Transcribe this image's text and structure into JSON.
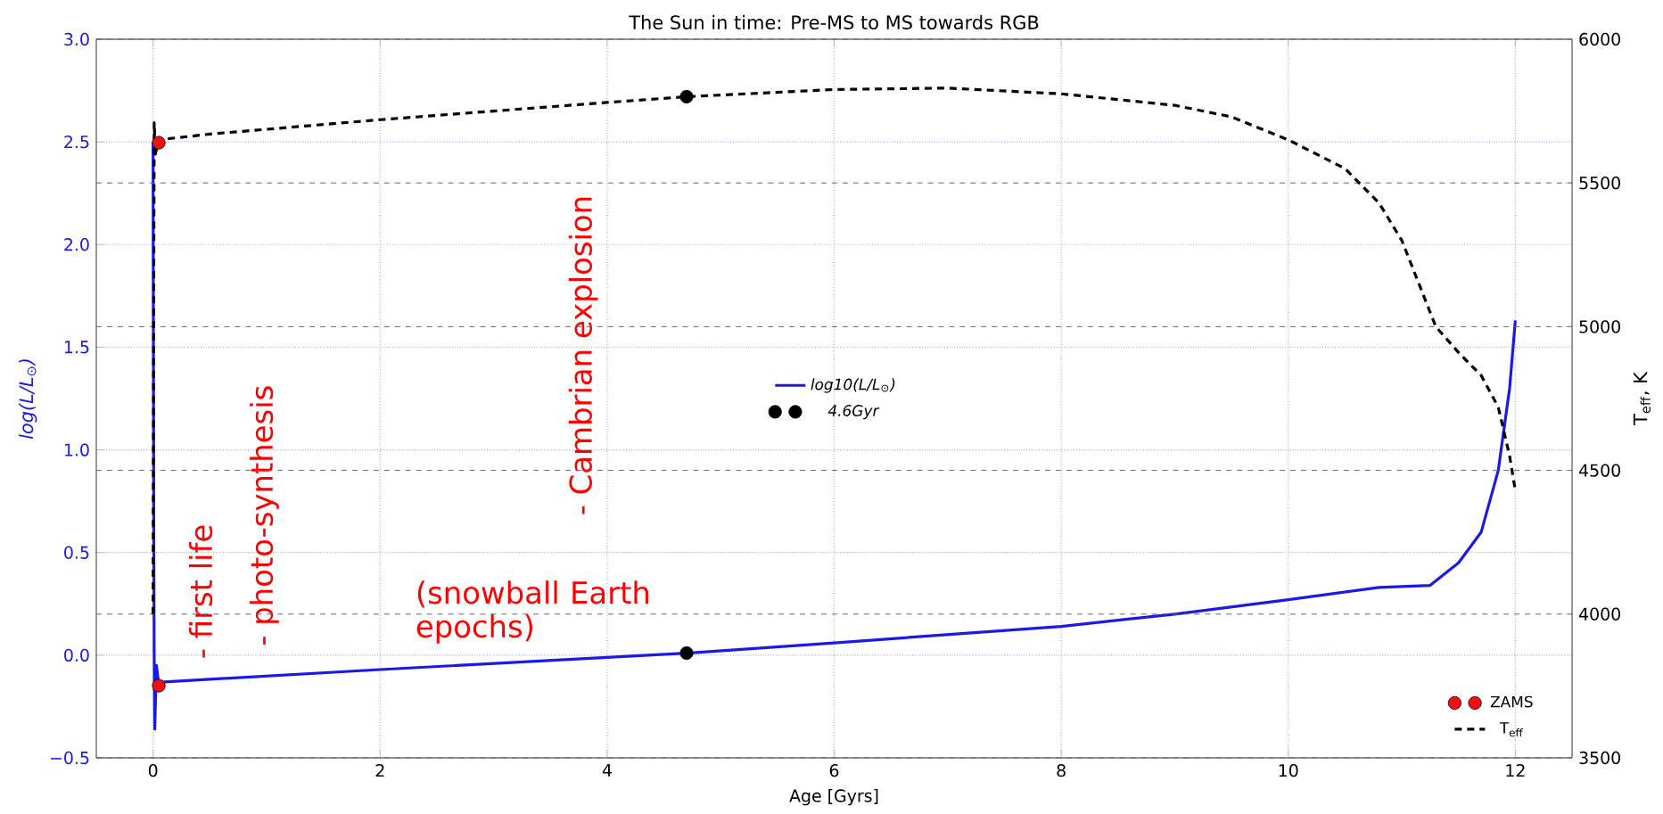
{
  "chart_data": {
    "type": "line",
    "title": "The Sun in time: Pre-MS to MS towards RGB",
    "xlabel": "Age [Gyrs]",
    "ylabel": "log(L/L$_{⊙}$)",
    "y2label": "T$_{eff}$, K",
    "xlim": [
      -0.5,
      12.5
    ],
    "xticks": [
      0,
      2,
      4,
      6,
      8,
      10,
      12
    ],
    "ylim": [
      -0.5,
      3.0
    ],
    "yticks": [
      {
        "value": -0.5,
        "label": "−0.5"
      },
      {
        "value": 0,
        "label": "0.0"
      },
      {
        "value": 0.5,
        "label": "0.5"
      },
      {
        "value": 1,
        "label": "1.0"
      },
      {
        "value": 1.5,
        "label": "1.5"
      },
      {
        "value": 2,
        "label": "2.0"
      },
      {
        "value": 2.5,
        "label": "2.5"
      },
      {
        "value": 3,
        "label": "3.0"
      }
    ],
    "y2lim": [
      3500,
      6000
    ],
    "y2ticks": [
      3500,
      4000,
      4500,
      5000,
      5500,
      6000
    ],
    "grid": true,
    "legend": "center",
    "series": [
      {
        "name": "log10(L/L$_{⊙}$)",
        "color": "#1a1ae6",
        "line_style": "solid",
        "x": [
          0.0,
          0.003,
          0.006,
          0.01,
          0.015,
          0.02,
          0.03,
          0.05,
          0.1,
          2,
          4.7,
          6,
          8,
          9,
          10,
          10.8,
          11.25,
          11.5,
          11.7,
          11.85,
          11.95,
          12.0
        ],
        "values": [
          2.5,
          1.5,
          0.6,
          0.0,
          -0.36,
          -0.25,
          -0.05,
          -0.14,
          -0.13,
          -0.07,
          0.01,
          0.06,
          0.14,
          0.2,
          0.27,
          0.33,
          0.34,
          0.45,
          0.6,
          0.9,
          1.3,
          1.63
        ]
      },
      {
        "name": "4.6Gyr",
        "color": "#000000",
        "type": "scatter",
        "marker": "circle",
        "x": [
          4.7,
          4.7
        ],
        "values": [
          0.01,
          2.72
        ]
      },
      {
        "name": "ZAMS",
        "color": "#ee1111",
        "type": "scatter",
        "marker": "circle",
        "axis": "y2",
        "x": [
          0.05,
          0.05
        ],
        "values": [
          3751,
          5640
        ]
      },
      {
        "name": "T$_{eff}$",
        "color": "#000000",
        "line_style": "dashed",
        "axis": "y2",
        "x": [
          0.0,
          0.005,
          0.01,
          0.02,
          0.05,
          0.5,
          2,
          4,
          4.7,
          6,
          7,
          8,
          9,
          9.5,
          10,
          10.5,
          10.8,
          11,
          11.15,
          11.3,
          11.5,
          11.7,
          11.85,
          11.95,
          12.0
        ],
        "values": [
          4000,
          5000,
          5710,
          5600,
          5650,
          5670,
          5720,
          5780,
          5800,
          5825,
          5830,
          5810,
          5770,
          5730,
          5650,
          5550,
          5430,
          5300,
          5150,
          5000,
          4910,
          4830,
          4720,
          4550,
          4430
        ]
      }
    ],
    "annotations": [
      "- first life",
      "- photo-synthesis",
      "- Cambrian explosion",
      "(snowball Earth epochs)"
    ]
  }
}
